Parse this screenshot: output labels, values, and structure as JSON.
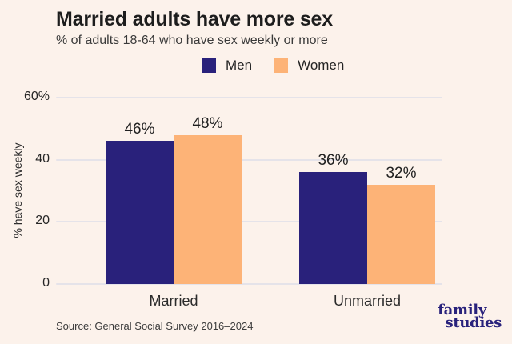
{
  "title": "Married adults have more sex",
  "subtitle": "% of adults 18-64 who have sex weekly or more",
  "legend": {
    "items": [
      {
        "label": "Men",
        "color": "#29217B"
      },
      {
        "label": "Women",
        "color": "#FDB377"
      }
    ]
  },
  "chart_data": {
    "type": "bar",
    "categories": [
      "Married",
      "Unmarried"
    ],
    "series": [
      {
        "name": "Men",
        "color": "#29217B",
        "values": [
          46,
          36
        ]
      },
      {
        "name": "Women",
        "color": "#FDB377",
        "values": [
          48,
          32
        ]
      }
    ],
    "value_suffix": "%",
    "title": "Married adults have more sex",
    "subtitle": "% of adults 18-64 who have sex weekly or more",
    "xlabel": "",
    "ylabel": "% have sex weekly",
    "ylim": [
      0,
      60
    ],
    "yticks": [
      {
        "value": 60,
        "label": "60%"
      },
      {
        "value": 40,
        "label": "40"
      },
      {
        "value": 20,
        "label": "20"
      },
      {
        "value": 0,
        "label": "0"
      }
    ],
    "grid": true,
    "legend_position": "top"
  },
  "source": "Source: General Social Survey 2016–2024",
  "logo": {
    "line1": "family",
    "line2": "studies"
  },
  "colors": {
    "background": "#FCF2EB",
    "men": "#29217B",
    "women": "#FDB377",
    "gridline": "#E5E3E9",
    "logo": "#29227C"
  }
}
